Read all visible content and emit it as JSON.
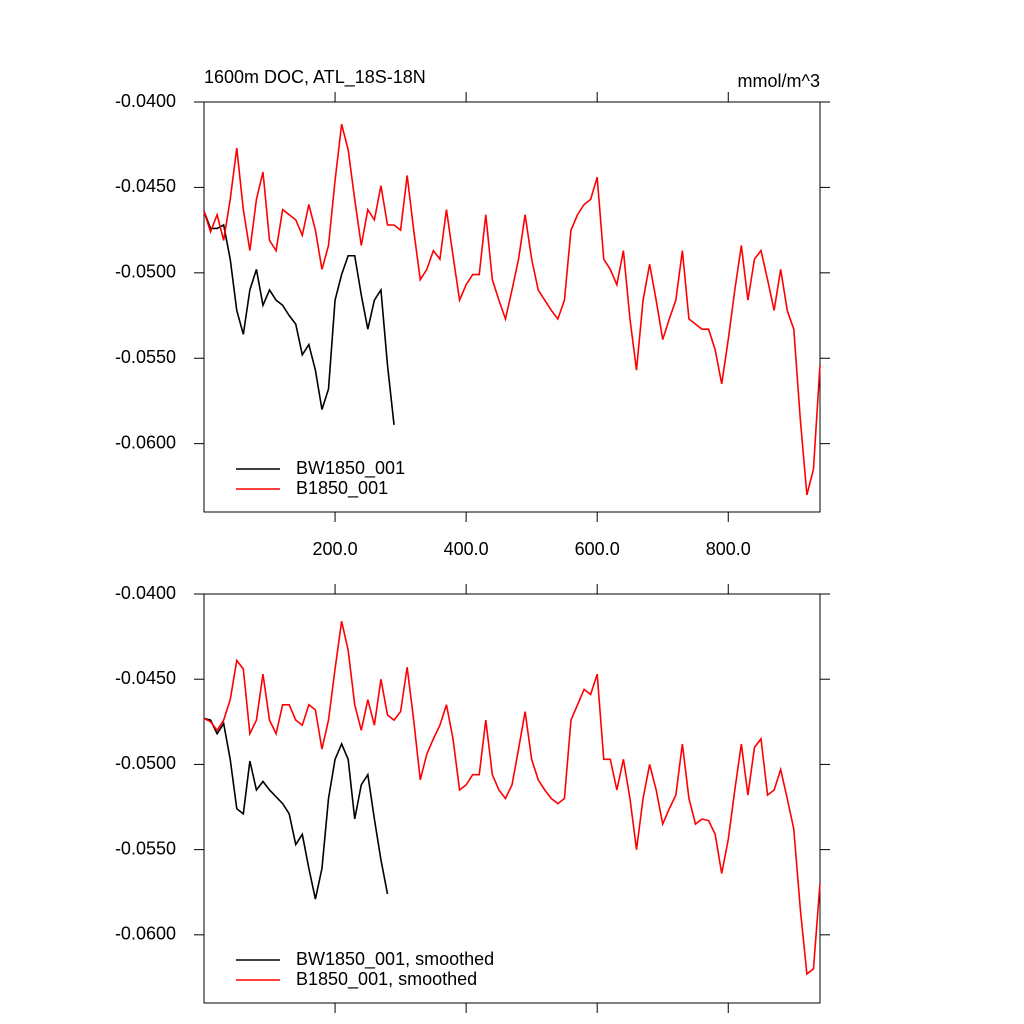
{
  "chart_data": [
    {
      "type": "line",
      "title": "1600m DOC, ATL_18S-18N",
      "units": "mmol/m^3",
      "xlim": [
        0,
        940
      ],
      "ylim": [
        -0.064,
        -0.04
      ],
      "xticks": [
        {
          "value": 200,
          "label": "200.0"
        },
        {
          "value": 400,
          "label": "400.0"
        },
        {
          "value": 600,
          "label": "600.0"
        },
        {
          "value": 800,
          "label": "800.0"
        }
      ],
      "xtick_labels": true,
      "yticks": [
        {
          "value": -0.04,
          "label": "-0.0400"
        },
        {
          "value": -0.045,
          "label": "-0.0450"
        },
        {
          "value": -0.05,
          "label": "-0.0500"
        },
        {
          "value": -0.055,
          "label": "-0.0550"
        },
        {
          "value": -0.06,
          "label": "-0.0600"
        }
      ],
      "legend": "lower left",
      "series": [
        {
          "name": "BW1850_001",
          "color": "#000000",
          "x": [
            0,
            10,
            20,
            30,
            40,
            50,
            60,
            70,
            80,
            90,
            100,
            110,
            120,
            130,
            140,
            150,
            160,
            170,
            180,
            190,
            200,
            210,
            220,
            230,
            240,
            250,
            260,
            270,
            280,
            290
          ],
          "values": [
            -0.0464,
            -0.0474,
            -0.0474,
            -0.0472,
            -0.0492,
            -0.0522,
            -0.0536,
            -0.051,
            -0.0498,
            -0.0519,
            -0.051,
            -0.0516,
            -0.0519,
            -0.0525,
            -0.053,
            -0.0548,
            -0.0542,
            -0.0557,
            -0.058,
            -0.0568,
            -0.0516,
            -0.0501,
            -0.049,
            -0.049,
            -0.0513,
            -0.0533,
            -0.0516,
            -0.051,
            -0.0554,
            -0.0589
          ]
        },
        {
          "name": "B1850_001",
          "color": "#ff0000",
          "x": [
            0,
            10,
            20,
            30,
            40,
            50,
            60,
            70,
            80,
            90,
            100,
            110,
            120,
            130,
            140,
            150,
            160,
            170,
            180,
            190,
            200,
            210,
            220,
            230,
            240,
            250,
            260,
            270,
            280,
            290,
            300,
            310,
            320,
            330,
            340,
            350,
            360,
            370,
            380,
            390,
            400,
            410,
            420,
            430,
            440,
            450,
            460,
            470,
            480,
            490,
            500,
            510,
            520,
            530,
            540,
            550,
            560,
            570,
            580,
            590,
            600,
            610,
            620,
            630,
            640,
            650,
            660,
            670,
            680,
            690,
            700,
            710,
            720,
            730,
            740,
            750,
            760,
            770,
            780,
            790,
            800,
            810,
            820,
            830,
            840,
            850,
            860,
            870,
            880,
            890,
            900,
            910,
            920,
            930,
            940
          ],
          "values": [
            -0.0464,
            -0.0476,
            -0.0466,
            -0.0481,
            -0.0457,
            -0.0427,
            -0.0463,
            -0.0487,
            -0.0457,
            -0.0441,
            -0.0481,
            -0.0487,
            -0.0463,
            -0.0466,
            -0.0469,
            -0.0478,
            -0.046,
            -0.0475,
            -0.0498,
            -0.0484,
            -0.0446,
            -0.0413,
            -0.0428,
            -0.0457,
            -0.0484,
            -0.0463,
            -0.0469,
            -0.0449,
            -0.0472,
            -0.0472,
            -0.0475,
            -0.0443,
            -0.0475,
            -0.0504,
            -0.0498,
            -0.0487,
            -0.0492,
            -0.0463,
            -0.049,
            -0.0516,
            -0.0507,
            -0.0501,
            -0.0501,
            -0.0466,
            -0.0504,
            -0.0516,
            -0.0527,
            -0.051,
            -0.0492,
            -0.0466,
            -0.0492,
            -0.051,
            -0.0516,
            -0.0522,
            -0.0527,
            -0.0516,
            -0.0475,
            -0.0466,
            -0.046,
            -0.0457,
            -0.0444,
            -0.0492,
            -0.0498,
            -0.0507,
            -0.0487,
            -0.0527,
            -0.0557,
            -0.0516,
            -0.0495,
            -0.0516,
            -0.0539,
            -0.0527,
            -0.0516,
            -0.0487,
            -0.0527,
            -0.053,
            -0.0533,
            -0.0533,
            -0.0545,
            -0.0565,
            -0.0539,
            -0.051,
            -0.0484,
            -0.0516,
            -0.0492,
            -0.0487,
            -0.0504,
            -0.0522,
            -0.0498,
            -0.0522,
            -0.0533,
            -0.0586,
            -0.063,
            -0.0615,
            -0.0554
          ]
        }
      ]
    },
    {
      "type": "line",
      "xlim": [
        0,
        940
      ],
      "ylim": [
        -0.064,
        -0.04
      ],
      "xticks": [
        200,
        400,
        600,
        800
      ],
      "xtick_labels": false,
      "yticks": [
        {
          "value": -0.04,
          "label": "-0.0400"
        },
        {
          "value": -0.045,
          "label": "-0.0450"
        },
        {
          "value": -0.05,
          "label": "-0.0500"
        },
        {
          "value": -0.055,
          "label": "-0.0550"
        },
        {
          "value": -0.06,
          "label": "-0.0600"
        }
      ],
      "legend": "lower left",
      "series": [
        {
          "name": "BW1850_001, smoothed",
          "color": "#000000",
          "x": [
            0,
            10,
            20,
            30,
            40,
            50,
            60,
            70,
            80,
            90,
            100,
            110,
            120,
            130,
            140,
            150,
            160,
            170,
            180,
            190,
            200,
            210,
            220,
            230,
            240,
            250,
            260,
            270,
            280
          ],
          "values": [
            -0.0473,
            -0.0474,
            -0.0482,
            -0.0476,
            -0.0497,
            -0.0526,
            -0.0529,
            -0.0498,
            -0.0515,
            -0.051,
            -0.0515,
            -0.0519,
            -0.0523,
            -0.0529,
            -0.0547,
            -0.0541,
            -0.0561,
            -0.0579,
            -0.0561,
            -0.052,
            -0.0497,
            -0.0488,
            -0.0497,
            -0.0532,
            -0.0512,
            -0.0506,
            -0.0532,
            -0.0556,
            -0.0576
          ]
        },
        {
          "name": "B1850_001, smoothed",
          "color": "#ff0000",
          "x": [
            0,
            10,
            20,
            30,
            40,
            50,
            60,
            70,
            80,
            90,
            100,
            110,
            120,
            130,
            140,
            150,
            160,
            170,
            180,
            190,
            200,
            210,
            220,
            230,
            240,
            250,
            260,
            270,
            280,
            290,
            300,
            310,
            320,
            330,
            340,
            350,
            360,
            370,
            380,
            390,
            400,
            410,
            420,
            430,
            440,
            450,
            460,
            470,
            480,
            490,
            500,
            510,
            520,
            530,
            540,
            550,
            560,
            570,
            580,
            590,
            600,
            610,
            620,
            630,
            640,
            650,
            660,
            670,
            680,
            690,
            700,
            710,
            720,
            730,
            740,
            750,
            760,
            770,
            780,
            790,
            800,
            810,
            820,
            830,
            840,
            850,
            860,
            870,
            880,
            890,
            900,
            910,
            920,
            930,
            940
          ],
          "values": [
            -0.0473,
            -0.0475,
            -0.048,
            -0.0474,
            -0.0462,
            -0.0439,
            -0.0444,
            -0.0482,
            -0.0474,
            -0.0447,
            -0.0474,
            -0.0482,
            -0.0465,
            -0.0465,
            -0.0474,
            -0.0477,
            -0.0465,
            -0.0468,
            -0.0491,
            -0.0474,
            -0.0444,
            -0.0416,
            -0.0433,
            -0.0465,
            -0.048,
            -0.0462,
            -0.0477,
            -0.045,
            -0.0471,
            -0.0474,
            -0.0469,
            -0.0443,
            -0.0474,
            -0.0509,
            -0.0494,
            -0.0485,
            -0.0477,
            -0.0465,
            -0.0485,
            -0.0515,
            -0.0512,
            -0.0506,
            -0.0506,
            -0.0474,
            -0.0506,
            -0.0515,
            -0.052,
            -0.0512,
            -0.0491,
            -0.0469,
            -0.0497,
            -0.0509,
            -0.0515,
            -0.052,
            -0.0523,
            -0.052,
            -0.0474,
            -0.0465,
            -0.0456,
            -0.0459,
            -0.0447,
            -0.0497,
            -0.0497,
            -0.0515,
            -0.0497,
            -0.052,
            -0.055,
            -0.052,
            -0.05,
            -0.0515,
            -0.0535,
            -0.0526,
            -0.0518,
            -0.0488,
            -0.052,
            -0.0535,
            -0.0532,
            -0.0533,
            -0.0541,
            -0.0564,
            -0.0544,
            -0.0515,
            -0.0488,
            -0.0518,
            -0.049,
            -0.0485,
            -0.0518,
            -0.0515,
            -0.0503,
            -0.052,
            -0.0538,
            -0.0585,
            -0.0623,
            -0.062,
            -0.057
          ]
        }
      ]
    }
  ]
}
